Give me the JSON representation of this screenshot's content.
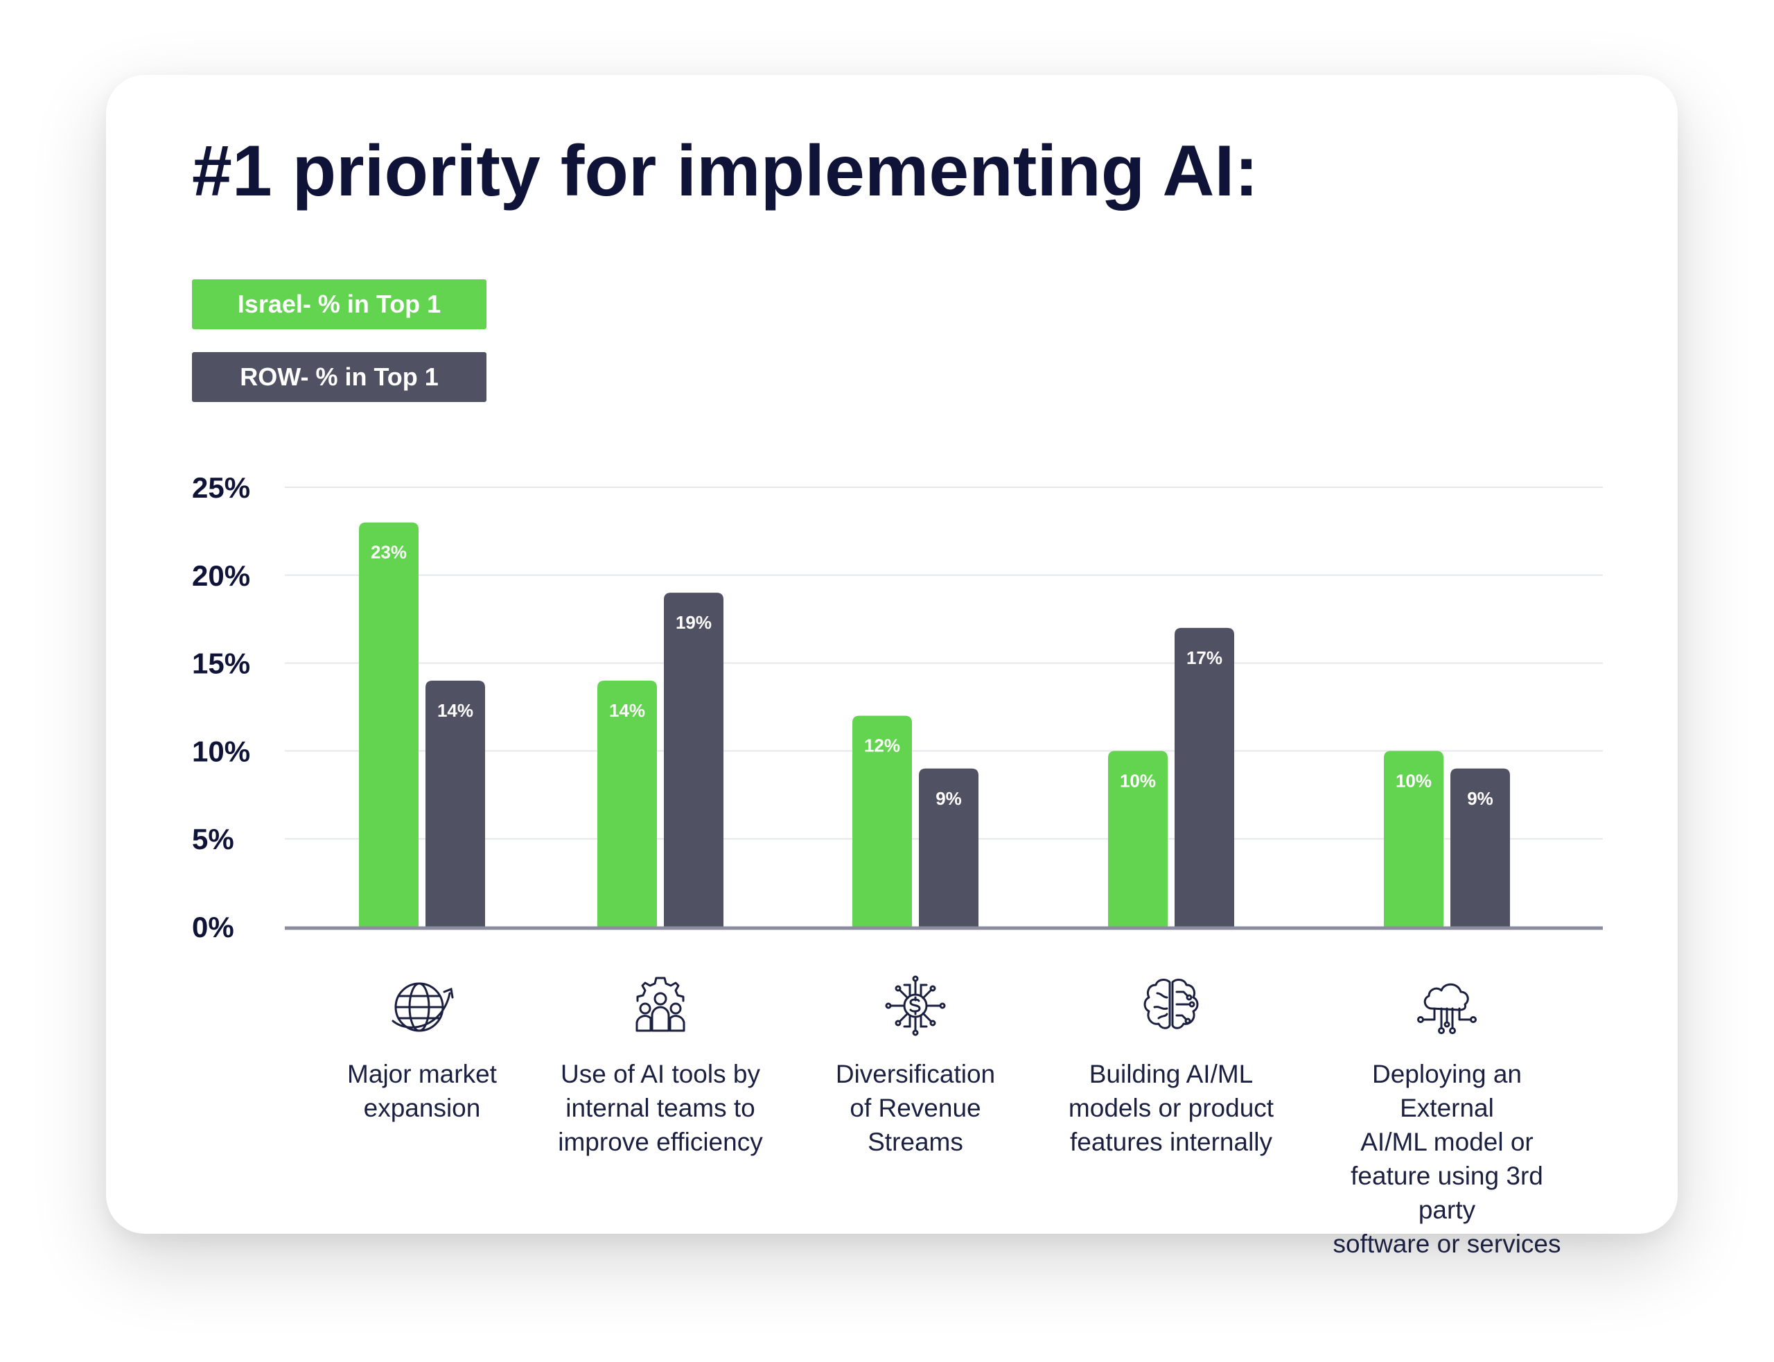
{
  "title": "#1 priority for implementing AI:",
  "colors": {
    "israel": "#63d44f",
    "row": "#505163",
    "text": "#0f1338",
    "grid": "#e6e7ec",
    "axis": "#8b8ca0"
  },
  "legend": {
    "israel": "Israel- % in Top 1",
    "row": "ROW- % in Top 1"
  },
  "chart_data": {
    "type": "bar",
    "title": "#1 priority for implementing AI:",
    "xlabel": "",
    "ylabel": "",
    "ylim": [
      0,
      25
    ],
    "yticks": [
      "0%",
      "5%",
      "10%",
      "15%",
      "20%",
      "25%"
    ],
    "grid": true,
    "legend_position": "top-left",
    "categories": [
      "Major market expansion",
      "Use of AI tools by internal teams to improve efficiency",
      "Diversification of Revenue Streams",
      "Building AI/ML models or product features internally",
      "Deploying an External AI/ML model or feature using 3rd party software or services"
    ],
    "series": [
      {
        "name": "Israel- % in Top 1",
        "values": [
          23,
          14,
          12,
          10,
          10
        ],
        "labels": [
          "23%",
          "14%",
          "12%",
          "10%",
          "10%"
        ]
      },
      {
        "name": "ROW- % in Top 1",
        "values": [
          14,
          19,
          9,
          17,
          9
        ],
        "labels": [
          "14%",
          "19%",
          "9%",
          "17%",
          "9%"
        ]
      }
    ]
  },
  "categories": [
    {
      "label": "Major market\nexpansion",
      "icon": "globe-arrow-icon"
    },
    {
      "label": "Use of AI tools by\ninternal teams to\nimprove efficiency",
      "icon": "team-gear-icon"
    },
    {
      "label": "Diversification\nof Revenue\nStreams",
      "icon": "dollar-circuit-icon"
    },
    {
      "label": "Building AI/ML\nmodels or product\nfeatures internally",
      "icon": "brain-icon"
    },
    {
      "label": "Deploying an External\nAI/ML model or\nfeature using 3rd party\nsoftware or services",
      "icon": "cloud-network-icon"
    }
  ]
}
